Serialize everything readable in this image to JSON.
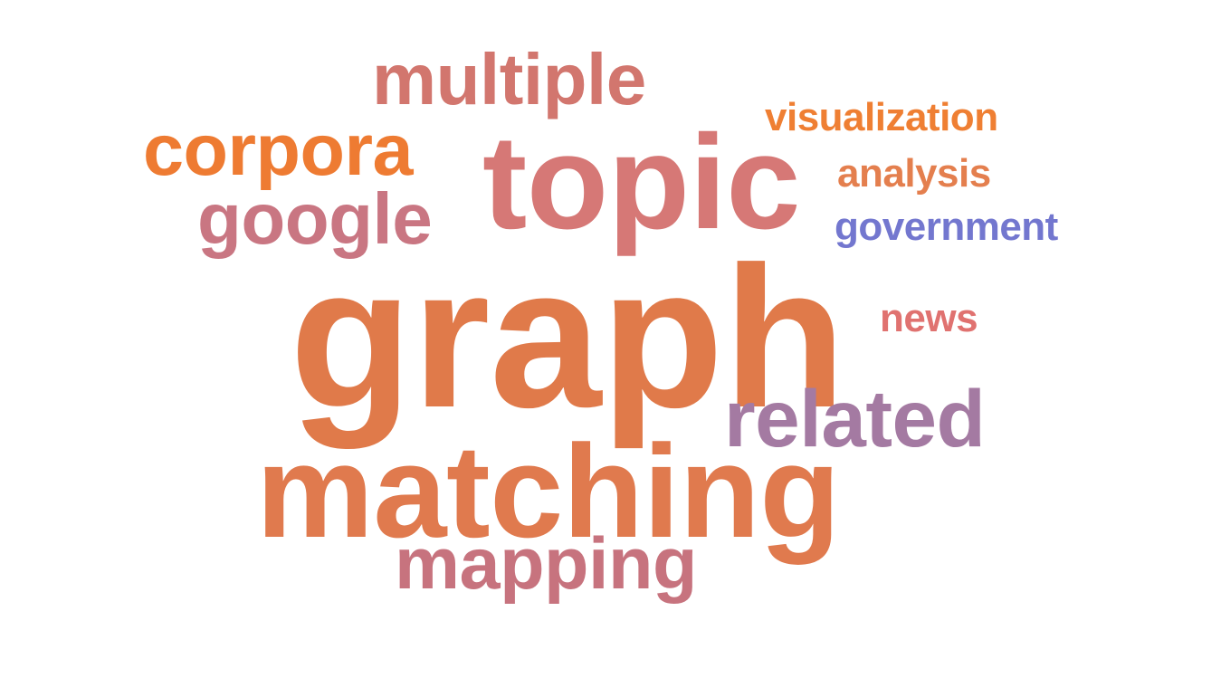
{
  "words": {
    "graph": {
      "text": "graph",
      "color": "#E07A4A"
    },
    "matching": {
      "text": "matching",
      "color": "#E07A4E"
    },
    "topic": {
      "text": "topic",
      "color": "#D67876"
    },
    "multiple": {
      "text": "multiple",
      "color": "#D2766E"
    },
    "corpora": {
      "text": "corpora",
      "color": "#EE7B32"
    },
    "google": {
      "text": "google",
      "color": "#C97682"
    },
    "related": {
      "text": "related",
      "color": "#A47AA2"
    },
    "mapping": {
      "text": "mapping",
      "color": "#C7737E"
    },
    "visualization": {
      "text": "visualization",
      "color": "#EF7F33"
    },
    "analysis": {
      "text": "analysis",
      "color": "#E47F4E"
    },
    "government": {
      "text": "government",
      "color": "#7377CF"
    },
    "news": {
      "text": "news",
      "color": "#E07270"
    }
  }
}
